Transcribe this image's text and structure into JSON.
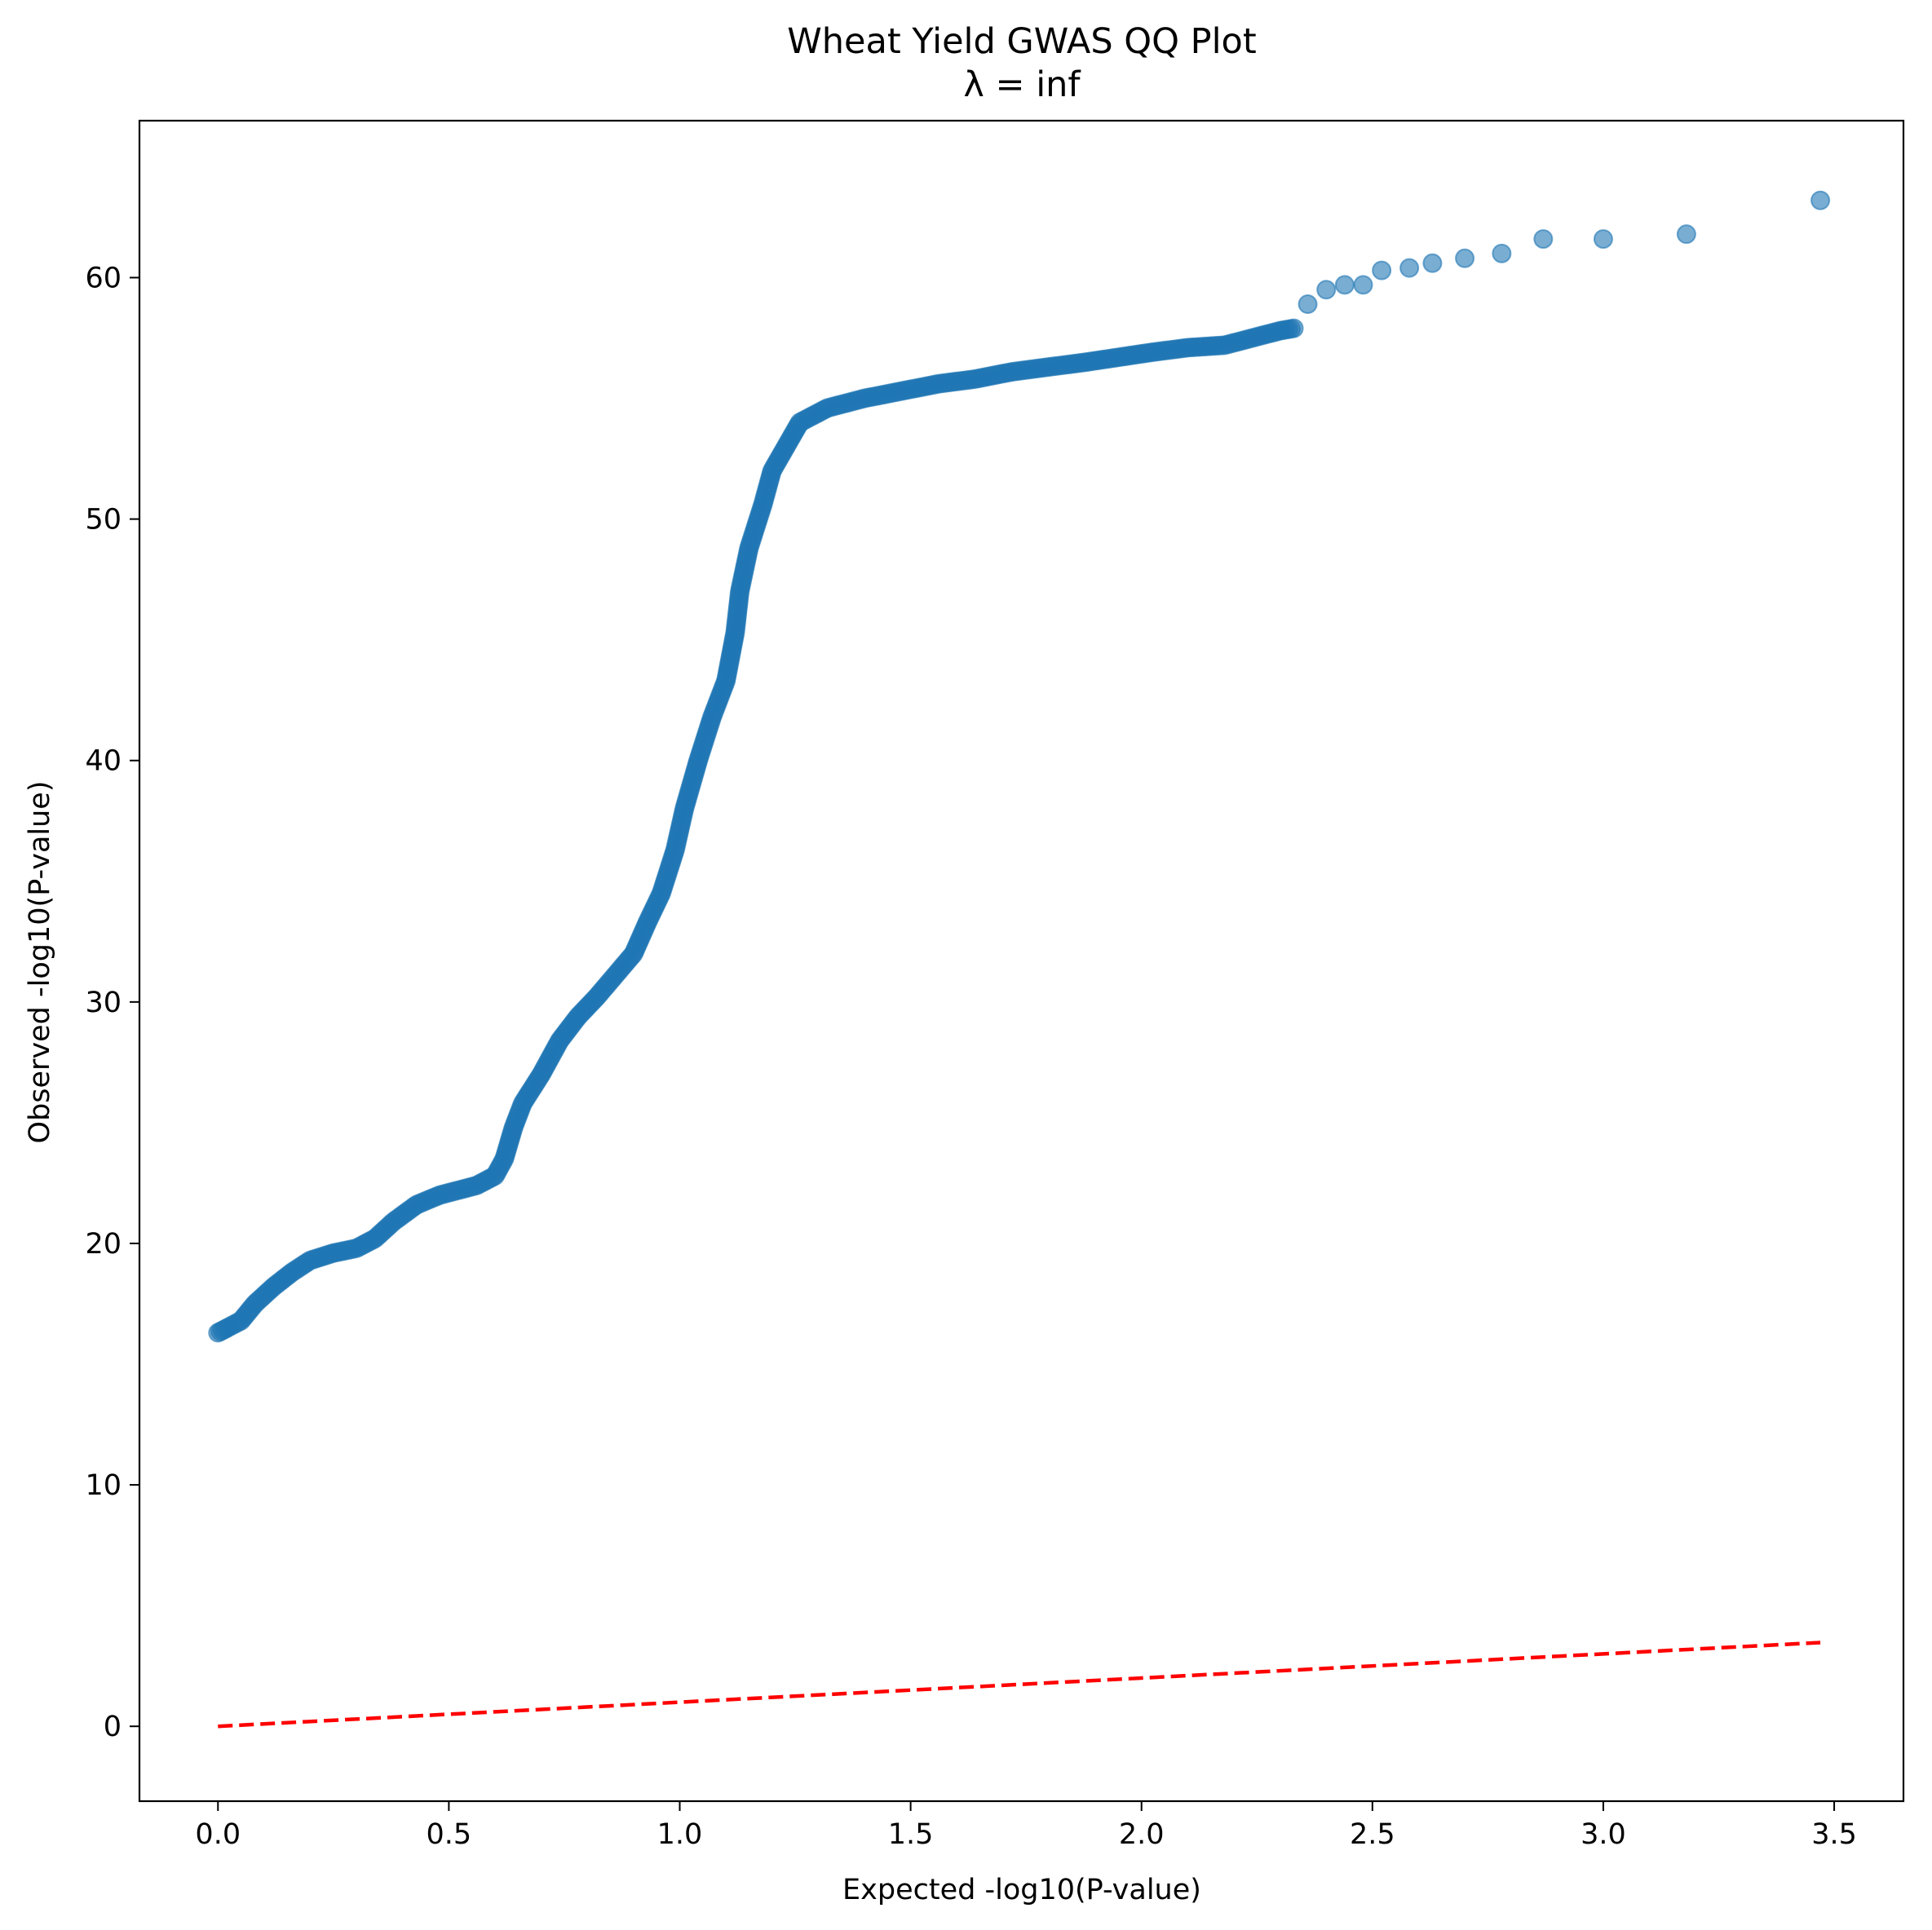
{
  "chart_data": {
    "type": "scatter",
    "title": "Wheat Yield GWAS QQ Plot",
    "subtitle": "λ = inf",
    "xlabel": "Expected -log10(P-value)",
    "ylabel": "Observed -log10(P-value)",
    "xlim": [
      -0.17,
      3.65
    ],
    "ylim": [
      -3.1,
      66.5
    ],
    "xticks": [
      "0.0",
      "0.5",
      "1.0",
      "1.5",
      "2.0",
      "2.5",
      "3.0",
      "3.5"
    ],
    "yticks": [
      "0",
      "10",
      "20",
      "30",
      "40",
      "50",
      "60"
    ],
    "grid": false,
    "colors": {
      "points": "#1f77b4",
      "reference_line": "#ff0000"
    },
    "reference_line": {
      "style": "dashed",
      "x": [
        0,
        3.47
      ],
      "y": [
        0,
        3.47
      ]
    },
    "curve_points": [
      [
        0.0,
        16.3
      ],
      [
        0.02,
        16.5
      ],
      [
        0.05,
        16.8
      ],
      [
        0.08,
        17.5
      ],
      [
        0.12,
        18.2
      ],
      [
        0.16,
        18.8
      ],
      [
        0.2,
        19.3
      ],
      [
        0.25,
        19.6
      ],
      [
        0.3,
        19.8
      ],
      [
        0.34,
        20.2
      ],
      [
        0.38,
        20.9
      ],
      [
        0.43,
        21.6
      ],
      [
        0.48,
        22.0
      ],
      [
        0.52,
        22.2
      ],
      [
        0.56,
        22.4
      ],
      [
        0.6,
        22.8
      ],
      [
        0.62,
        23.5
      ],
      [
        0.64,
        24.8
      ],
      [
        0.66,
        25.8
      ],
      [
        0.7,
        27.0
      ],
      [
        0.74,
        28.4
      ],
      [
        0.78,
        29.4
      ],
      [
        0.82,
        30.2
      ],
      [
        0.86,
        31.1
      ],
      [
        0.9,
        32.0
      ],
      [
        0.93,
        33.3
      ],
      [
        0.96,
        34.5
      ],
      [
        0.99,
        36.3
      ],
      [
        1.01,
        38.0
      ],
      [
        1.04,
        40.0
      ],
      [
        1.07,
        41.8
      ],
      [
        1.1,
        43.3
      ],
      [
        1.12,
        45.3
      ],
      [
        1.13,
        47.0
      ],
      [
        1.15,
        48.8
      ],
      [
        1.18,
        50.6
      ],
      [
        1.2,
        52.0
      ],
      [
        1.23,
        53.0
      ],
      [
        1.26,
        54.0
      ],
      [
        1.32,
        54.6
      ],
      [
        1.4,
        55.0
      ],
      [
        1.48,
        55.3
      ],
      [
        1.56,
        55.6
      ],
      [
        1.64,
        55.8
      ],
      [
        1.72,
        56.1
      ],
      [
        1.8,
        56.3
      ],
      [
        1.88,
        56.5
      ],
      [
        1.95,
        56.7
      ],
      [
        2.02,
        56.9
      ],
      [
        2.1,
        57.1
      ],
      [
        2.18,
        57.2
      ],
      [
        2.24,
        57.5
      ],
      [
        2.3,
        57.8
      ],
      [
        2.33,
        57.9
      ]
    ],
    "tail_points": [
      [
        2.36,
        58.9
      ],
      [
        2.4,
        59.5
      ],
      [
        2.44,
        59.7
      ],
      [
        2.48,
        59.7
      ],
      [
        2.52,
        60.3
      ],
      [
        2.58,
        60.4
      ],
      [
        2.63,
        60.6
      ],
      [
        2.7,
        60.8
      ],
      [
        2.78,
        61.0
      ],
      [
        2.87,
        61.6
      ],
      [
        3.0,
        61.6
      ],
      [
        3.18,
        61.8
      ],
      [
        3.47,
        63.2
      ]
    ]
  }
}
